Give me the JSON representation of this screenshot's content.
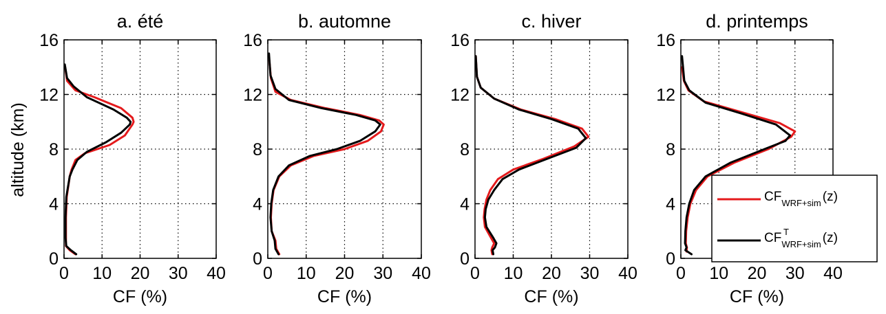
{
  "figure": {
    "ylabel": "altitude (km)",
    "xlabel": "CF (%)",
    "legend": {
      "placement": "lower-right of panel d",
      "entries": [
        {
          "base": "CF",
          "sub": "WRF+sim",
          "sup": "",
          "suffix": "(z)",
          "color": "#e41a1c"
        },
        {
          "base": "CF",
          "sub": "WRF+sim",
          "sup": "T",
          "suffix": "(z)",
          "color": "#000000"
        }
      ]
    }
  },
  "chart_data": [
    {
      "type": "line",
      "title": "a. été",
      "xlabel": "CF (%)",
      "ylabel": "altitude (km)",
      "xlim": [
        0,
        40
      ],
      "ylim": [
        0,
        16
      ],
      "xticks": [
        "0",
        "10",
        "20",
        "30",
        "40"
      ],
      "yticks": [
        "0",
        "4",
        "8",
        "12",
        "16"
      ],
      "grid": true,
      "series": [
        {
          "color": "#e41a1c",
          "x": [
            3,
            1.5,
            0.5,
            0.5,
            0.5,
            0.7,
            1.5,
            2,
            3,
            5.5,
            12,
            16,
            18,
            18.3,
            18,
            15,
            8,
            3,
            0.8,
            0.3
          ],
          "y": [
            0.3,
            0.6,
            0.9,
            1.5,
            3,
            4.5,
            6,
            6.5,
            7.2,
            7.7,
            8.3,
            9,
            9.8,
            10,
            10.3,
            11,
            11.8,
            12.3,
            13,
            14
          ]
        },
        {
          "color": "#000000",
          "x": [
            3.2,
            1.8,
            0.6,
            0.4,
            0.4,
            0.6,
            1.5,
            2.2,
            3.5,
            6,
            11,
            15,
            17.3,
            17.5,
            16.5,
            13,
            6,
            2.5,
            0.8,
            0.2
          ],
          "y": [
            0.3,
            0.6,
            0.9,
            1.5,
            3,
            4.5,
            6,
            6.5,
            7.2,
            7.8,
            8.5,
            9.2,
            9.8,
            10,
            10.3,
            10.9,
            11.8,
            12.6,
            13.2,
            14.2
          ]
        }
      ]
    },
    {
      "type": "line",
      "title": "b. automne",
      "xlabel": "CF (%)",
      "ylabel": "",
      "xlim": [
        0,
        40
      ],
      "ylim": [
        0,
        16
      ],
      "xticks": [
        "0",
        "10",
        "20",
        "30",
        "40"
      ],
      "yticks": [
        "0",
        "4",
        "8",
        "12",
        "16"
      ],
      "grid": true,
      "series": [
        {
          "color": "#e41a1c",
          "x": [
            3,
            2.2,
            2,
            1,
            0.8,
            1,
            1.5,
            3,
            6,
            12,
            20,
            26,
            29.5,
            30.2,
            29,
            24,
            15,
            6,
            2,
            0.8,
            0.4
          ],
          "y": [
            0.3,
            0.7,
            1.3,
            2,
            3,
            4,
            5,
            6,
            6.8,
            7.5,
            8,
            8.6,
            9.3,
            9.8,
            10.1,
            10.5,
            11,
            11.6,
            12.2,
            13.2,
            14.5
          ]
        },
        {
          "color": "#000000",
          "x": [
            2.8,
            2,
            1.8,
            1,
            0.7,
            0.9,
            1.4,
            2.8,
            5.5,
            11,
            18,
            24,
            28,
            29.3,
            28,
            23,
            14,
            5.5,
            2,
            0.7,
            0.3
          ],
          "y": [
            0.3,
            0.7,
            1.3,
            2,
            3,
            4,
            5,
            6,
            6.8,
            7.5,
            8,
            8.6,
            9.3,
            9.8,
            10.1,
            10.5,
            11,
            11.6,
            12.4,
            13.4,
            15
          ]
        }
      ]
    },
    {
      "type": "line",
      "title": "c. hiver",
      "xlabel": "CF (%)",
      "ylabel": "",
      "xlim": [
        0,
        40
      ],
      "ylim": [
        0,
        16
      ],
      "xticks": [
        "0",
        "10",
        "20",
        "30",
        "40"
      ],
      "yticks": [
        "0",
        "4",
        "8",
        "12",
        "16"
      ],
      "grid": true,
      "series": [
        {
          "color": "#e41a1c",
          "x": [
            4.5,
            4.3,
            4.5,
            5,
            4.2,
            2.6,
            2.3,
            2.5,
            3,
            4,
            6,
            10,
            18,
            26,
            29.7,
            28,
            21,
            12,
            5,
            1.5,
            0.5,
            0.2
          ],
          "y": [
            0.3,
            0.6,
            0.8,
            1.1,
            1.5,
            2.3,
            3,
            3.6,
            4.3,
            5,
            5.8,
            6.5,
            7.3,
            8.2,
            8.9,
            9.5,
            10.2,
            10.9,
            11.7,
            12.5,
            13.3,
            14.8
          ]
        },
        {
          "color": "#000000",
          "x": [
            4.8,
            4.6,
            5.2,
            5.6,
            4.8,
            3,
            2.6,
            2.8,
            3.5,
            5,
            7.2,
            11.5,
            19,
            26.5,
            29,
            27,
            20,
            11.5,
            5,
            1.5,
            0.5,
            0.2
          ],
          "y": [
            0.3,
            0.6,
            0.8,
            1.1,
            1.5,
            2.3,
            3,
            3.6,
            4.3,
            5,
            5.8,
            6.5,
            7.3,
            8.1,
            8.8,
            9.5,
            10.2,
            10.9,
            11.7,
            12.5,
            13.3,
            14.8
          ]
        }
      ]
    },
    {
      "type": "line",
      "title": "d. printemps",
      "xlabel": "CF (%)",
      "ylabel": "",
      "xlim": [
        0,
        40
      ],
      "ylim": [
        0,
        16
      ],
      "xticks": [
        "0",
        "10",
        "20",
        "30",
        "40"
      ],
      "yticks": [
        "0",
        "4",
        "8",
        "12",
        "16"
      ],
      "grid": true,
      "series": [
        {
          "color": "#e41a1c",
          "x": [
            1.5,
            1.6,
            1.3,
            1.4,
            1.8,
            2.5,
            4,
            7,
            14,
            23,
            29,
            30,
            26,
            16,
            6,
            2,
            0.8,
            0.3
          ],
          "y": [
            0.5,
            0.8,
            1.1,
            2,
            3,
            4,
            5,
            6,
            7,
            8,
            8.9,
            9.3,
            9.9,
            10.7,
            11.5,
            12.3,
            13,
            14
          ]
        },
        {
          "color": "#000000",
          "x": [
            2.8,
            1.2,
            1.5,
            1.1,
            1.2,
            1.5,
            2.2,
            3.5,
            6.5,
            13,
            22,
            27.5,
            28.7,
            25,
            16,
            6.5,
            2.2,
            0.9,
            0.3
          ],
          "y": [
            0.3,
            0.6,
            0.8,
            1.1,
            2,
            3,
            4,
            5,
            6,
            7,
            8,
            8.6,
            9,
            9.8,
            10.6,
            11.4,
            12.3,
            13,
            14.8
          ]
        }
      ]
    }
  ]
}
